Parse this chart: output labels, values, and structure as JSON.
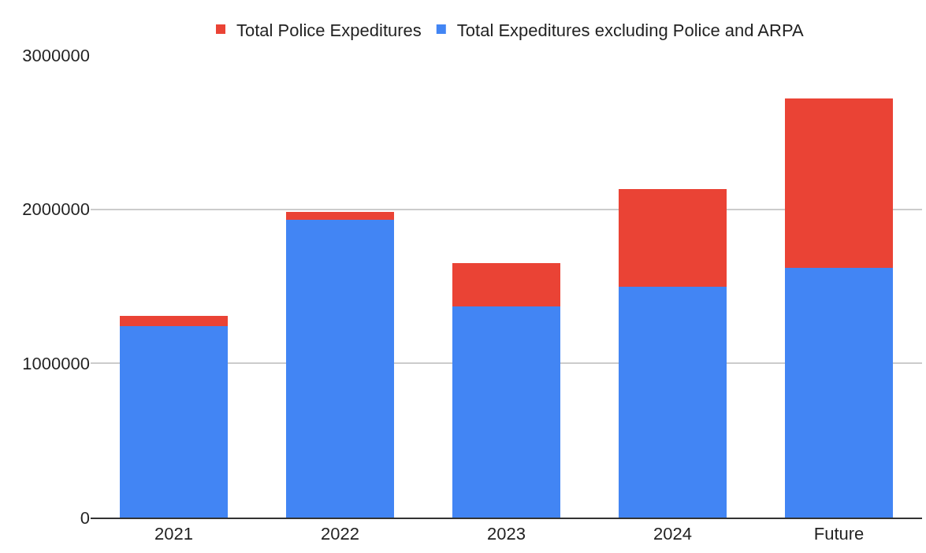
{
  "chart_data": {
    "type": "bar",
    "stacked": true,
    "categories": [
      "2021",
      "2022",
      "2023",
      "2024",
      "Future"
    ],
    "series": [
      {
        "name": "Total Expeditures excluding Police and ARPA",
        "color": "#4285f4",
        "values": [
          1244000,
          1930000,
          1372000,
          1495000,
          1618000
        ]
      },
      {
        "name": "Total Police Expeditures",
        "color": "#ea4335",
        "values": [
          62000,
          51000,
          277000,
          635000,
          1101000
        ]
      }
    ],
    "ylim": [
      0,
      3000000
    ],
    "yticks": [
      0,
      1000000,
      2000000,
      3000000
    ],
    "grid": "y",
    "legend": "top"
  }
}
